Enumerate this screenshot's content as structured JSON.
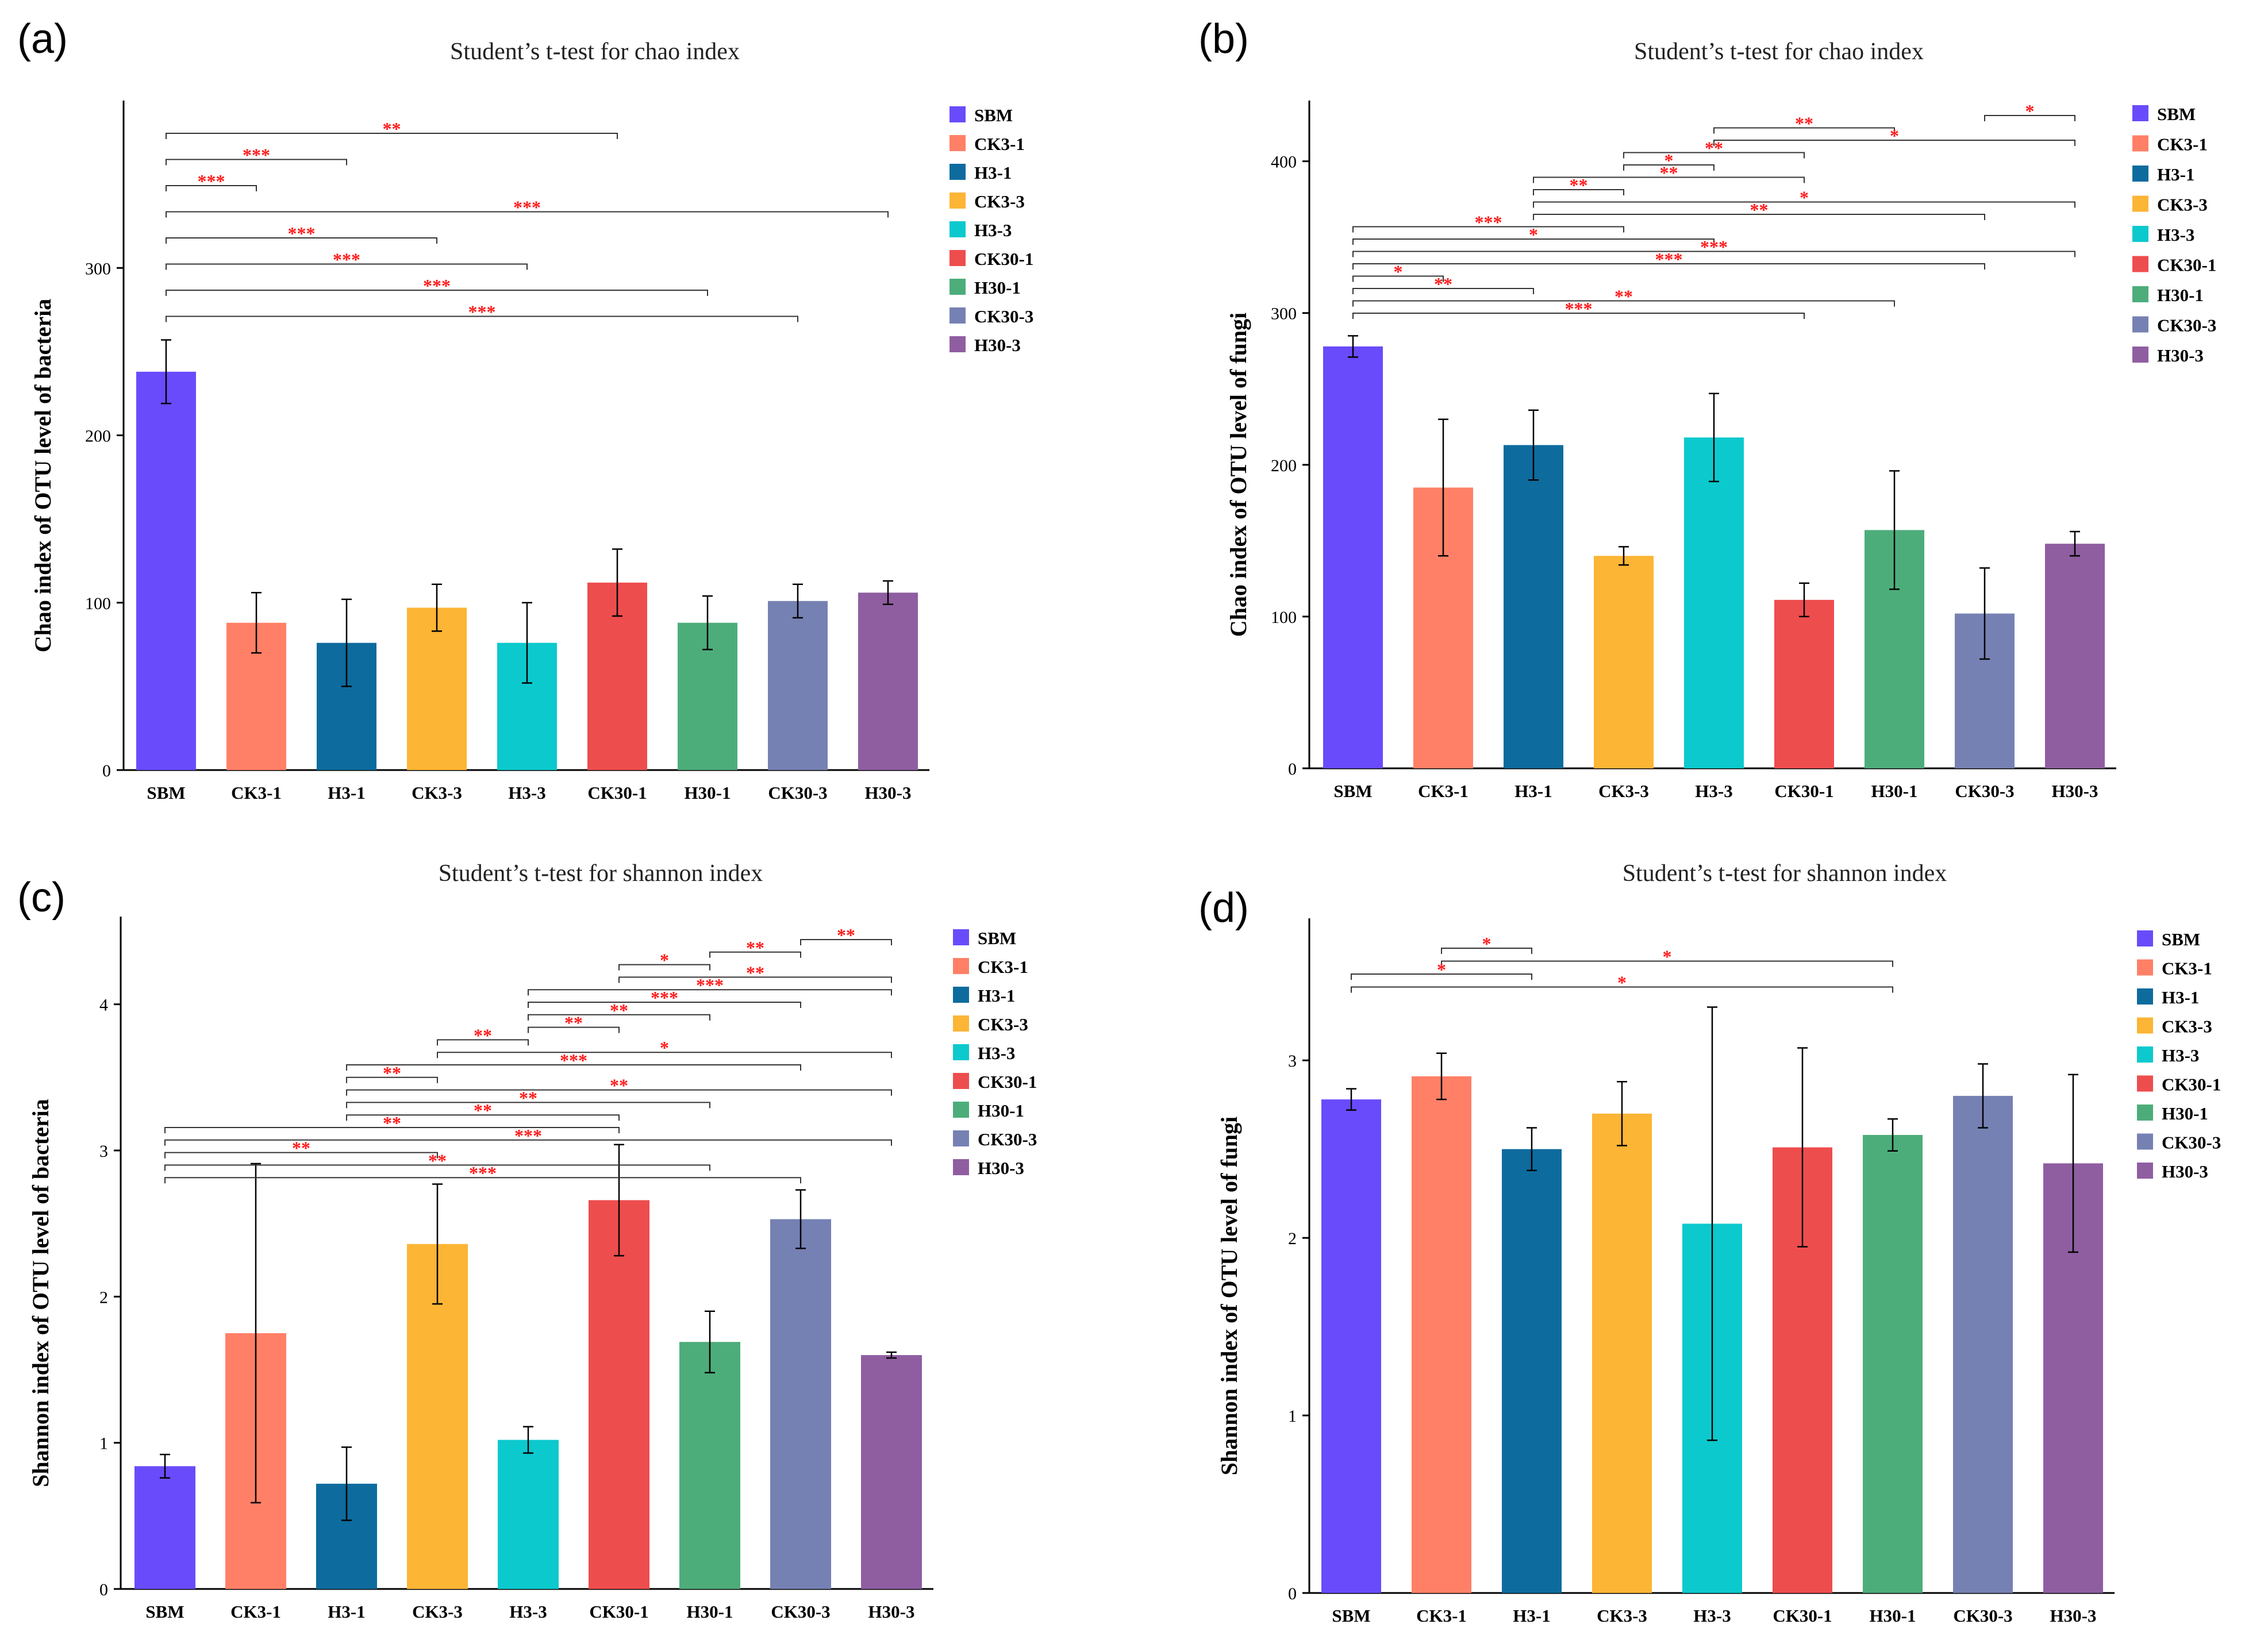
{
  "figure": {
    "background": "#ffffff"
  },
  "palette": {
    "SBM": "#6A4BFB",
    "CK3-1": "#FF8066",
    "H3-1": "#0E6B9E",
    "CK3-3": "#FCB535",
    "H3-3": "#0CC9CD",
    "CK30-1": "#EE4D4E",
    "H30-1": "#4DAD7A",
    "CK30-3": "#7681B3",
    "H30-3": "#8F5EA1"
  },
  "significance_color": "#FF1A1A",
  "chart_data": [
    {
      "panel": "(a)",
      "type": "bar",
      "title": "Student’s t-test for chao index",
      "ylabel": "Chao index of OTU level of bacteria",
      "xlabel": "",
      "categories": [
        "SBM",
        "CK3-1",
        "H3-1",
        "CK3-3",
        "H3-3",
        "CK30-1",
        "H30-1",
        "CK30-3",
        "H30-3"
      ],
      "values": [
        238,
        88,
        76,
        97,
        76,
        112,
        88,
        101,
        106
      ],
      "errors": [
        19,
        18,
        26,
        14,
        24,
        20,
        16,
        10,
        7
      ],
      "ylim": [
        0,
        400
      ],
      "yticks": [
        0,
        100,
        200,
        300
      ],
      "legend": "top-right",
      "comparisons": [
        {
          "from": "SBM",
          "to": "CK30-1",
          "label": "**"
        },
        {
          "from": "SBM",
          "to": "H3-1",
          "label": "***"
        },
        {
          "from": "SBM",
          "to": "CK3-1",
          "label": "***"
        },
        {
          "from": "SBM",
          "to": "H30-3",
          "label": "***"
        },
        {
          "from": "SBM",
          "to": "CK3-3",
          "label": "***"
        },
        {
          "from": "SBM",
          "to": "H3-3",
          "label": "***"
        },
        {
          "from": "SBM",
          "to": "H30-1",
          "label": "***"
        },
        {
          "from": "SBM",
          "to": "CK30-3",
          "label": "***"
        }
      ]
    },
    {
      "panel": "(b)",
      "type": "bar",
      "title": "Student’s t-test for chao index",
      "ylabel": "Chao index of OTU level of fungi",
      "xlabel": "",
      "categories": [
        "SBM",
        "CK3-1",
        "H3-1",
        "CK3-3",
        "H3-3",
        "CK30-1",
        "H30-1",
        "CK30-3",
        "H30-3"
      ],
      "values": [
        278,
        185,
        213,
        140,
        218,
        111,
        157,
        102,
        148
      ],
      "errors": [
        7,
        45,
        23,
        6,
        29,
        11,
        39,
        30,
        8
      ],
      "ylim": [
        0,
        440
      ],
      "yticks": [
        0,
        100,
        200,
        300,
        400
      ],
      "legend": "top-right",
      "comparisons": [
        {
          "from": "CK30-3",
          "to": "H30-3",
          "label": "*"
        },
        {
          "from": "H3-3",
          "to": "H30-1",
          "label": "**"
        },
        {
          "from": "H3-3",
          "to": "H30-3",
          "label": "*"
        },
        {
          "from": "CK3-3",
          "to": "CK30-1",
          "label": "**"
        },
        {
          "from": "CK3-3",
          "to": "H3-3",
          "label": "*"
        },
        {
          "from": "H3-1",
          "to": "CK30-1",
          "label": "**"
        },
        {
          "from": "H3-1",
          "to": "CK3-3",
          "label": "**"
        },
        {
          "from": "H3-1",
          "to": "H30-3",
          "label": "*"
        },
        {
          "from": "H3-1",
          "to": "CK30-3",
          "label": "**"
        },
        {
          "from": "SBM",
          "to": "CK3-3",
          "label": "***"
        },
        {
          "from": "SBM",
          "to": "H3-3",
          "label": "*"
        },
        {
          "from": "SBM",
          "to": "H30-3",
          "label": "***"
        },
        {
          "from": "SBM",
          "to": "CK30-3",
          "label": "***"
        },
        {
          "from": "SBM",
          "to": "CK3-1",
          "label": "*"
        },
        {
          "from": "SBM",
          "to": "H3-1",
          "label": "**"
        },
        {
          "from": "SBM",
          "to": "H30-1",
          "label": "**"
        },
        {
          "from": "SBM",
          "to": "CK30-1",
          "label": "***"
        }
      ]
    },
    {
      "panel": "(c)",
      "type": "bar",
      "title": "Student’s t-test for shannon index",
      "ylabel": "Shannon index of OTU level of bacteria",
      "xlabel": "",
      "categories": [
        "SBM",
        "CK3-1",
        "H3-1",
        "CK3-3",
        "H3-3",
        "CK30-1",
        "H30-1",
        "CK30-3",
        "H30-3"
      ],
      "values": [
        0.84,
        1.75,
        0.72,
        2.36,
        1.02,
        2.66,
        1.69,
        2.53,
        1.6
      ],
      "errors": [
        0.08,
        1.16,
        0.25,
        0.41,
        0.09,
        0.38,
        0.21,
        0.2,
        0.02
      ],
      "ylim": [
        0,
        4.6
      ],
      "yticks": [
        0,
        1,
        2,
        3,
        4
      ],
      "legend": "top-right",
      "comparisons": [
        {
          "from": "CK30-3",
          "to": "H30-3",
          "label": "**"
        },
        {
          "from": "H30-1",
          "to": "CK30-3",
          "label": "**"
        },
        {
          "from": "CK30-1",
          "to": "H30-1",
          "label": "*"
        },
        {
          "from": "CK30-1",
          "to": "H30-3",
          "label": "**"
        },
        {
          "from": "H3-3",
          "to": "H30-3",
          "label": "***"
        },
        {
          "from": "H3-3",
          "to": "CK30-3",
          "label": "***"
        },
        {
          "from": "H3-3",
          "to": "H30-1",
          "label": "**"
        },
        {
          "from": "H3-3",
          "to": "CK30-1",
          "label": "**"
        },
        {
          "from": "CK3-3",
          "to": "H3-3",
          "label": "**"
        },
        {
          "from": "CK3-3",
          "to": "H30-3",
          "label": "*"
        },
        {
          "from": "H3-1",
          "to": "CK30-3",
          "label": "***"
        },
        {
          "from": "H3-1",
          "to": "CK3-3",
          "label": "**"
        },
        {
          "from": "H3-1",
          "to": "H30-3",
          "label": "**"
        },
        {
          "from": "H3-1",
          "to": "H30-1",
          "label": "**"
        },
        {
          "from": "H3-1",
          "to": "CK30-1",
          "label": "**"
        },
        {
          "from": "SBM",
          "to": "CK30-1",
          "label": "**"
        },
        {
          "from": "SBM",
          "to": "H30-3",
          "label": "***"
        },
        {
          "from": "SBM",
          "to": "CK3-3",
          "label": "**"
        },
        {
          "from": "SBM",
          "to": "H30-1",
          "label": "**"
        },
        {
          "from": "SBM",
          "to": "CK30-3",
          "label": "***"
        }
      ]
    },
    {
      "panel": "(d)",
      "type": "bar",
      "title": "Student’s t-test for shannon index",
      "ylabel": "Shannon index of OTU level of fungi",
      "xlabel": "",
      "categories": [
        "SBM",
        "CK3-1",
        "H3-1",
        "CK3-3",
        "H3-3",
        "CK30-1",
        "H30-1",
        "CK30-3",
        "H30-3"
      ],
      "values": [
        2.78,
        2.91,
        2.5,
        2.7,
        2.08,
        2.51,
        2.58,
        2.8,
        2.42
      ],
      "errors": [
        0.06,
        0.13,
        0.12,
        0.18,
        1.22,
        0.56,
        0.09,
        0.18,
        0.5
      ],
      "ylim": [
        0,
        3.8
      ],
      "yticks": [
        0,
        1,
        2,
        3
      ],
      "legend": "top-right",
      "comparisons": [
        {
          "from": "CK3-1",
          "to": "H3-1",
          "label": "*"
        },
        {
          "from": "CK3-1",
          "to": "H30-1",
          "label": "*"
        },
        {
          "from": "SBM",
          "to": "H3-1",
          "label": "*"
        },
        {
          "from": "SBM",
          "to": "H30-1",
          "label": "*"
        }
      ]
    }
  ]
}
